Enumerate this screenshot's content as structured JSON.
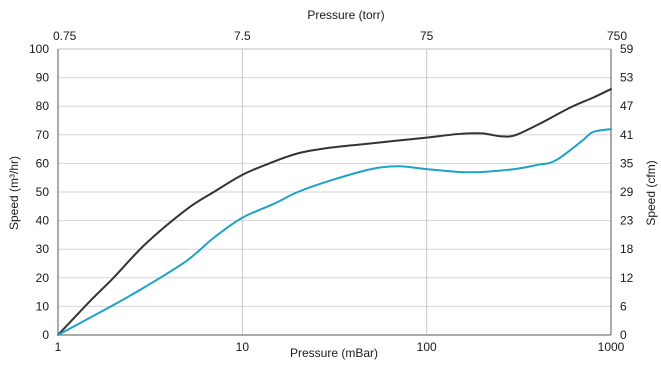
{
  "chart_data": {
    "type": "line",
    "xscale": "log",
    "xlabel": "Pressure (mBar)",
    "x2label": "Pressure (torr)",
    "ylabel": "Speed (m³/hr)",
    "y2label": "Speed (cfm)",
    "xlim": [
      1,
      1000
    ],
    "ylim": [
      0,
      100
    ],
    "grid": "vertical at decades",
    "legend": "none",
    "x_ticks": [
      {
        "value": 1,
        "label": "1"
      },
      {
        "value": 10,
        "label": "10"
      },
      {
        "value": 100,
        "label": "100"
      },
      {
        "value": 1000,
        "label": "1000"
      }
    ],
    "x2_ticks": [
      {
        "value": 1,
        "label": "0.75"
      },
      {
        "value": 10,
        "label": "7.5"
      },
      {
        "value": 100,
        "label": "75"
      },
      {
        "value": 1000,
        "label": "750"
      }
    ],
    "y_ticks": [
      {
        "value": 0,
        "label": "0"
      },
      {
        "value": 10,
        "label": "10"
      },
      {
        "value": 20,
        "label": "20"
      },
      {
        "value": 30,
        "label": "30"
      },
      {
        "value": 40,
        "label": "40"
      },
      {
        "value": 50,
        "label": "50"
      },
      {
        "value": 60,
        "label": "60"
      },
      {
        "value": 70,
        "label": "70"
      },
      {
        "value": 80,
        "label": "80"
      },
      {
        "value": 90,
        "label": "90"
      },
      {
        "value": 100,
        "label": "100"
      }
    ],
    "y2_ticks": [
      {
        "value": 0,
        "label": "0"
      },
      {
        "value": 10,
        "label": "6"
      },
      {
        "value": 20,
        "label": "12"
      },
      {
        "value": 30,
        "label": "18"
      },
      {
        "value": 40,
        "label": "23"
      },
      {
        "value": 50,
        "label": "29"
      },
      {
        "value": 60,
        "label": "35"
      },
      {
        "value": 70,
        "label": "41"
      },
      {
        "value": 80,
        "label": "47"
      },
      {
        "value": 90,
        "label": "53"
      },
      {
        "value": 100,
        "label": "59"
      }
    ],
    "series": [
      {
        "color": "#333333",
        "x": [
          1,
          1.5,
          2,
          3,
          5,
          7,
          10,
          14,
          20,
          30,
          50,
          70,
          100,
          150,
          200,
          250,
          300,
          400,
          600,
          800,
          1000
        ],
        "y": [
          0,
          12,
          20,
          32,
          44,
          50,
          56,
          60,
          63.5,
          65.5,
          67,
          68,
          69,
          70.3,
          70.5,
          69.5,
          69.8,
          73.5,
          79.5,
          83,
          86
        ]
      },
      {
        "color": "#1fa3c4",
        "x": [
          1,
          2,
          3,
          5,
          7,
          10,
          15,
          20,
          30,
          50,
          70,
          100,
          150,
          200,
          300,
          400,
          500,
          700,
          800,
          1000
        ],
        "y": [
          0,
          10.5,
          17,
          26,
          34,
          41,
          46,
          50,
          54,
          58,
          59,
          58,
          57,
          57,
          58,
          59.5,
          61,
          68,
          71,
          72
        ]
      }
    ]
  }
}
